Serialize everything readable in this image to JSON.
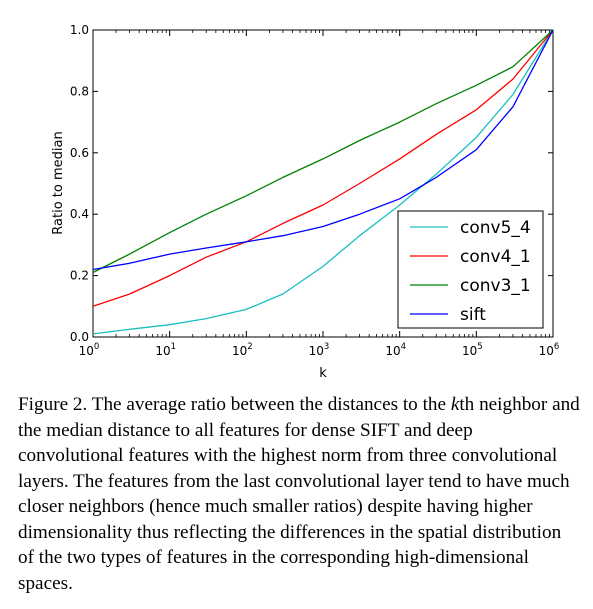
{
  "chart_data": {
    "type": "line",
    "xlabel": "k",
    "ylabel": "Ratio to median",
    "xscale": "log",
    "xlim": [
      1,
      1000000
    ],
    "ylim": [
      0.0,
      1.0
    ],
    "xticks": [
      {
        "base": "10",
        "exp": "0",
        "value": 1
      },
      {
        "base": "10",
        "exp": "1",
        "value": 10
      },
      {
        "base": "10",
        "exp": "2",
        "value": 100
      },
      {
        "base": "10",
        "exp": "3",
        "value": 1000
      },
      {
        "base": "10",
        "exp": "4",
        "value": 10000
      },
      {
        "base": "10",
        "exp": "5",
        "value": 100000
      },
      {
        "base": "10",
        "exp": "6",
        "value": 1000000
      }
    ],
    "yticks": [
      "0.0",
      "0.2",
      "0.4",
      "0.6",
      "0.8",
      "1.0"
    ],
    "grid": false,
    "legend_position": "lower-right",
    "series": [
      {
        "name": "conv5_4",
        "color": "#19bfbf",
        "x": [
          1,
          3,
          10,
          30,
          100,
          300,
          1000,
          3000,
          10000,
          30000,
          100000,
          300000,
          1000000
        ],
        "y": [
          0.01,
          0.025,
          0.04,
          0.06,
          0.09,
          0.14,
          0.23,
          0.33,
          0.43,
          0.53,
          0.65,
          0.79,
          1.0
        ]
      },
      {
        "name": "conv4_1",
        "color": "#ff0000",
        "x": [
          1,
          3,
          10,
          30,
          100,
          300,
          1000,
          3000,
          10000,
          30000,
          100000,
          300000,
          1000000
        ],
        "y": [
          0.1,
          0.14,
          0.2,
          0.26,
          0.31,
          0.37,
          0.43,
          0.5,
          0.58,
          0.66,
          0.74,
          0.84,
          1.0
        ]
      },
      {
        "name": "conv3_1",
        "color": "#008000",
        "x": [
          1,
          3,
          10,
          30,
          100,
          300,
          1000,
          3000,
          10000,
          30000,
          100000,
          300000,
          1000000
        ],
        "y": [
          0.21,
          0.27,
          0.34,
          0.4,
          0.46,
          0.52,
          0.58,
          0.64,
          0.7,
          0.76,
          0.82,
          0.88,
          1.0
        ]
      },
      {
        "name": "sift",
        "color": "#0000ff",
        "x": [
          1,
          3,
          10,
          30,
          100,
          300,
          1000,
          3000,
          10000,
          30000,
          100000,
          300000,
          1000000
        ],
        "y": [
          0.22,
          0.24,
          0.27,
          0.29,
          0.31,
          0.33,
          0.36,
          0.4,
          0.45,
          0.52,
          0.61,
          0.75,
          1.0
        ]
      }
    ]
  },
  "caption": {
    "prefix": "Figure 2. The average ratio between the distances to the ",
    "k": "k",
    "suffix": "th neighbor and the median distance to all features for dense SIFT and deep convolutional features with the highest norm from three convolutional layers. The features from the last convolutional layer tend to have much closer neighbors (hence much smaller ratios) despite having higher dimensionality thus reflecting the differences in the spatial distribution of the two types of features in the corresponding high-dimensional spaces."
  }
}
